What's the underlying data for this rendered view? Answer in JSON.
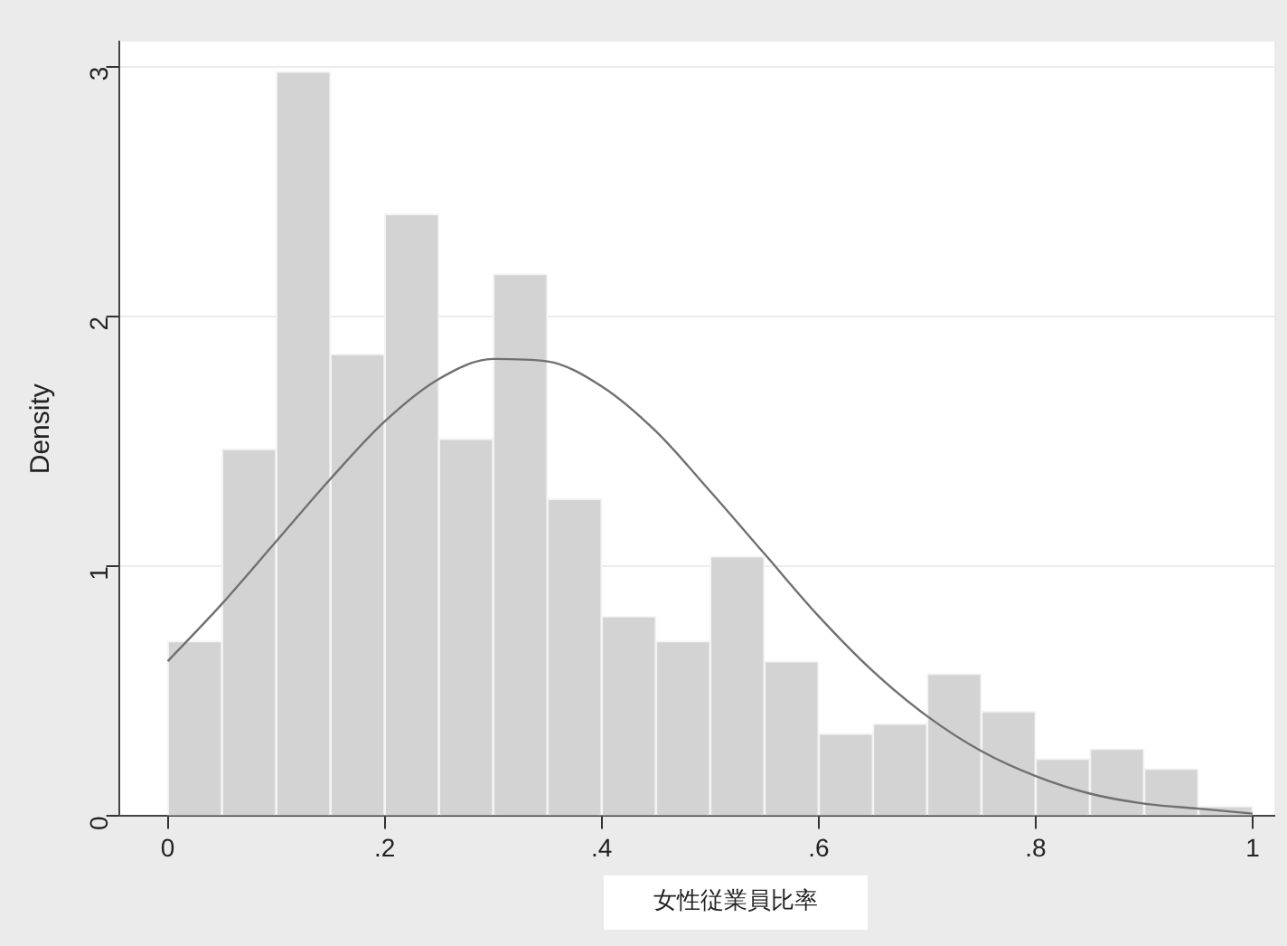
{
  "chart_data": {
    "type": "histogram",
    "xlabel": "女性従業員比率",
    "ylabel": "Density",
    "bins": [
      0,
      0.05,
      0.1,
      0.15,
      0.2,
      0.25,
      0.3,
      0.35,
      0.4,
      0.45,
      0.5,
      0.55,
      0.6,
      0.65,
      0.7,
      0.75,
      0.8,
      0.85,
      0.9,
      0.95,
      1
    ],
    "values": [
      0.7,
      1.47,
      2.98,
      1.85,
      2.41,
      1.51,
      2.17,
      1.27,
      0.8,
      0.7,
      1.04,
      0.62,
      0.33,
      0.37,
      0.57,
      0.42,
      0.23,
      0.27,
      0.19,
      0.04
    ],
    "color": "#d3d3d3",
    "series": [
      {
        "type": "line",
        "color": "#707070",
        "x": [
          0,
          0.05,
          0.1,
          0.15,
          0.2,
          0.25,
          0.3,
          0.35,
          0.4,
          0.45,
          0.5,
          0.55,
          0.6,
          0.65,
          0.7,
          0.75,
          0.8,
          0.85,
          0.9,
          0.95,
          1
        ],
        "values": [
          0.62,
          0.85,
          1.1,
          1.35,
          1.58,
          1.75,
          1.83,
          1.82,
          1.72,
          1.54,
          1.3,
          1.05,
          0.8,
          0.58,
          0.4,
          0.26,
          0.16,
          0.09,
          0.05,
          0.03,
          0.01
        ]
      }
    ],
    "xlim": [
      -0.045,
      1.02
    ],
    "ylim": [
      0,
      3.1
    ],
    "xticks": [
      0,
      {
        "value": 0.2,
        "label": ".2"
      },
      {
        "value": 0.4,
        "label": ".4"
      },
      {
        "value": 0.6,
        "label": ".6"
      },
      {
        "value": 0.8,
        "label": ".8"
      },
      1
    ],
    "yticks": [
      0,
      1,
      2,
      3
    ],
    "grid": "y",
    "legend": false,
    "marker": "none"
  }
}
